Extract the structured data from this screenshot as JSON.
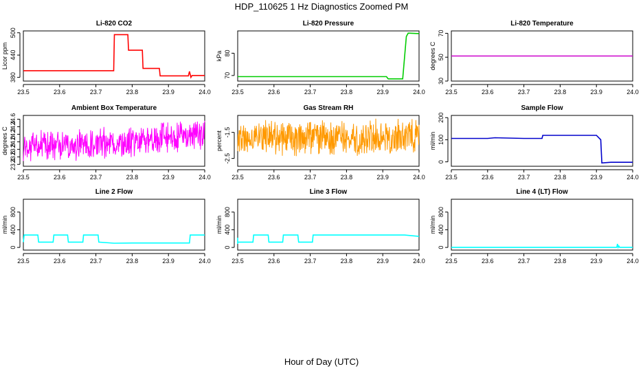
{
  "figure": {
    "title": "HDP_110625  1 Hz Diagnostics Zoomed PM",
    "xlabel": "Hour of Day (UTC)"
  },
  "chart_data": [
    {
      "type": "line",
      "title": "Li-820 CO2",
      "xlabel": "",
      "ylabel": "Licor ppm",
      "xlim": [
        23.5,
        24.0
      ],
      "ylim": [
        370,
        505
      ],
      "xticks": [
        "23.5",
        "23.6",
        "23.7",
        "23.8",
        "23.9",
        "24.0"
      ],
      "yticks": [
        "380",
        "440",
        "500"
      ],
      "grid": false,
      "noise": 0,
      "series": [
        {
          "color": "#ff0000",
          "x": [
            23.5,
            23.749,
            23.751,
            23.788,
            23.79,
            23.828,
            23.83,
            23.875,
            23.877,
            23.955,
            23.958,
            23.962,
            23.965,
            24.0
          ],
          "y": [
            398,
            398,
            495,
            495,
            453,
            453,
            404,
            404,
            384,
            384,
            396,
            380,
            385,
            385
          ]
        }
      ]
    },
    {
      "type": "line",
      "title": "Li-820 Pressure",
      "xlabel": "",
      "ylabel": "kPa",
      "xlim": [
        23.5,
        24.0
      ],
      "ylim": [
        67.5,
        90
      ],
      "xticks": [
        "23.5",
        "23.6",
        "23.7",
        "23.8",
        "23.9",
        "24.0"
      ],
      "yticks": [
        "70",
        "80"
      ],
      "grid": false,
      "noise": 0,
      "series": [
        {
          "color": "#00cc00",
          "x": [
            23.5,
            23.91,
            23.915,
            23.955,
            23.965,
            23.97,
            24.0
          ],
          "y": [
            69.5,
            69.5,
            68.5,
            68.5,
            87.5,
            89,
            88.8
          ]
        }
      ]
    },
    {
      "type": "line",
      "title": "Li-820 Temperature",
      "xlabel": "",
      "ylabel": "degrees C",
      "xlim": [
        23.5,
        24.0
      ],
      "ylim": [
        30,
        72
      ],
      "xticks": [
        "23.5",
        "23.6",
        "23.7",
        "23.8",
        "23.9",
        "24.0"
      ],
      "yticks": [
        "30",
        "50",
        "70"
      ],
      "grid": false,
      "noise": 0,
      "series": [
        {
          "color": "#cc00cc",
          "x": [
            23.5,
            24.0
          ],
          "y": [
            51,
            51
          ]
        }
      ]
    },
    {
      "type": "line",
      "title": "Ambient Box Temperature",
      "xlabel": "",
      "ylabel": "degrees C",
      "xlim": [
        23.5,
        24.0
      ],
      "ylim": [
        23.35,
        24.7
      ],
      "xticks": [
        "23.5",
        "23.6",
        "23.7",
        "23.8",
        "23.9",
        "24.0"
      ],
      "yticks": [
        "23.4",
        "23.6",
        "23.8",
        "24.0",
        "24.2",
        "24.4",
        "24.6"
      ],
      "grid": false,
      "noise": 0.45,
      "series": [
        {
          "color": "#ff00ff",
          "x": [
            23.5,
            23.6,
            23.7,
            23.8,
            23.9,
            24.0
          ],
          "y": [
            23.85,
            23.9,
            23.95,
            24.0,
            24.1,
            24.2
          ]
        }
      ]
    },
    {
      "type": "line",
      "title": "Gas Stream RH",
      "xlabel": "",
      "ylabel": "percent",
      "xlim": [
        23.5,
        24.0
      ],
      "ylim": [
        -2.8,
        -0.85
      ],
      "xticks": [
        "23.5",
        "23.6",
        "23.7",
        "23.8",
        "23.9",
        "24.0"
      ],
      "yticks": [
        "-2.5",
        "-1.5"
      ],
      "grid": false,
      "noise": 0.75,
      "series": [
        {
          "color": "#ff9900",
          "x": [
            23.5,
            24.0
          ],
          "y": [
            -1.7,
            -1.7
          ]
        }
      ]
    },
    {
      "type": "line",
      "title": "Sample Flow",
      "xlabel": "",
      "ylabel": "ml/min",
      "xlim": [
        23.5,
        24.0
      ],
      "ylim": [
        -20,
        210
      ],
      "xticks": [
        "23.5",
        "23.6",
        "23.7",
        "23.8",
        "23.9",
        "24.0"
      ],
      "yticks": [
        "0",
        "100",
        "200"
      ],
      "grid": false,
      "noise": 0,
      "series": [
        {
          "color": "#0000cc",
          "x": [
            23.5,
            23.6,
            23.62,
            23.7,
            23.75,
            23.752,
            23.9,
            23.912,
            23.915,
            23.94,
            24.0
          ],
          "y": [
            106,
            106,
            109,
            106,
            106,
            120,
            120,
            100,
            -5,
            -2,
            -2
          ]
        }
      ]
    },
    {
      "type": "line",
      "title": "Line 2 Flow",
      "xlabel": "",
      "ylabel": "ml/min",
      "xlim": [
        23.5,
        24.0
      ],
      "ylim": [
        -60,
        1090
      ],
      "xticks": [
        "23.5",
        "23.6",
        "23.7",
        "23.8",
        "23.9",
        "24.0"
      ],
      "yticks": [
        "0",
        "400",
        "800"
      ],
      "grid": false,
      "noise": 0,
      "series": [
        {
          "color": "#00ffff",
          "x": [
            23.5,
            23.502,
            23.54,
            23.542,
            23.582,
            23.584,
            23.622,
            23.624,
            23.664,
            23.666,
            23.706,
            23.708,
            23.75,
            23.8,
            23.9,
            23.958,
            23.96,
            24.0
          ],
          "y": [
            120,
            280,
            280,
            120,
            120,
            280,
            280,
            120,
            120,
            280,
            280,
            120,
            95,
            100,
            100,
            100,
            280,
            280
          ]
        }
      ]
    },
    {
      "type": "line",
      "title": "Line 3 Flow",
      "xlabel": "",
      "ylabel": "ml/min",
      "xlim": [
        23.5,
        24.0
      ],
      "ylim": [
        -60,
        1090
      ],
      "xticks": [
        "23.5",
        "23.6",
        "23.7",
        "23.8",
        "23.9",
        "24.0"
      ],
      "yticks": [
        "0",
        "400",
        "800"
      ],
      "grid": false,
      "noise": 0,
      "series": [
        {
          "color": "#00ffff",
          "x": [
            23.5,
            23.5,
            23.5,
            23.502,
            23.542,
            23.544,
            23.584,
            23.586,
            23.624,
            23.626,
            23.666,
            23.668,
            23.706,
            23.708,
            23.96,
            24.0
          ],
          "y": [
            220,
            80,
            120,
            120,
            120,
            280,
            280,
            120,
            120,
            280,
            280,
            120,
            120,
            280,
            280,
            250
          ]
        }
      ]
    },
    {
      "type": "line",
      "title": "Line 4 (LT) Flow",
      "xlabel": "",
      "ylabel": "ml/min",
      "xlim": [
        23.5,
        24.0
      ],
      "ylim": [
        -60,
        1090
      ],
      "xticks": [
        "23.5",
        "23.6",
        "23.7",
        "23.8",
        "23.9",
        "24.0"
      ],
      "yticks": [
        "0",
        "400",
        "800"
      ],
      "grid": false,
      "noise": 0,
      "series": [
        {
          "color": "#00ffff",
          "x": [
            23.5,
            23.956,
            23.958,
            23.96,
            23.962,
            23.964,
            24.0
          ],
          "y": [
            0,
            0,
            80,
            0,
            30,
            0,
            0
          ]
        }
      ]
    }
  ]
}
